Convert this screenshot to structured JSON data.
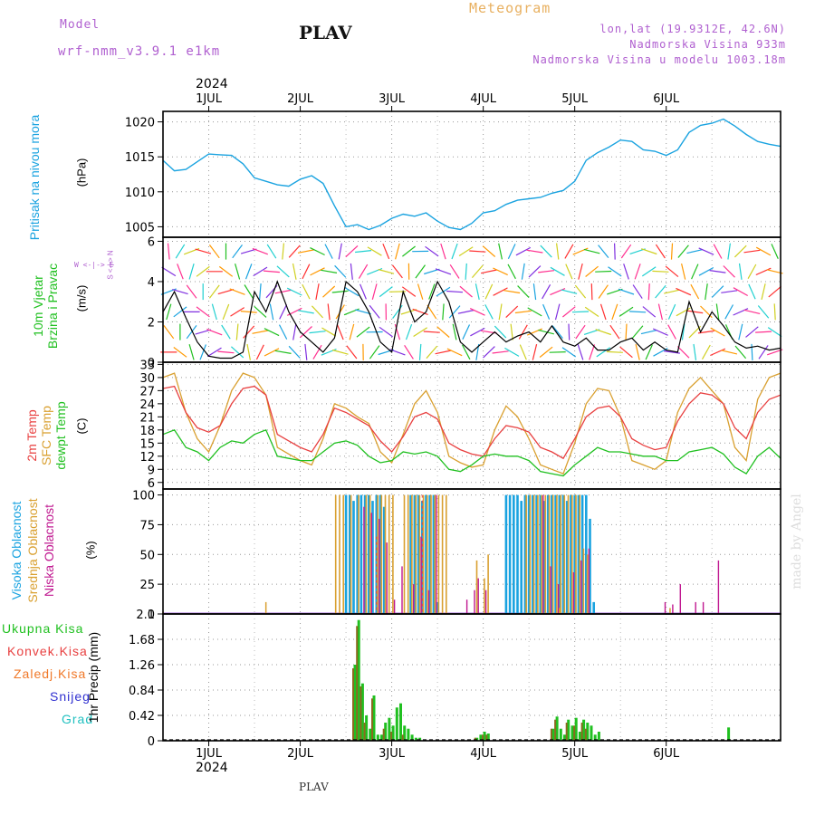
{
  "header": {
    "model_label": "Model",
    "model_name": "wrf-nmm_v3.9.1 e1km",
    "title": "PLAV",
    "meteogram_label": "Meteogram",
    "lonlat": "lon,lat (19.9312E, 42.6N)",
    "elevation": "Nadmorska Visina 933m",
    "model_elevation": "Nadmorska Visina u modelu 1003.18m",
    "footer_station": "PLAV",
    "watermark": "made by Angel",
    "year_top": "2024",
    "year_bottom": "2024"
  },
  "colors": {
    "pressure": "#1aa3e0",
    "temp2m": "#e84040",
    "sfc": "#d9a030",
    "dewpt": "#20c020",
    "high": "#1aa3e0",
    "mid": "#d9a030",
    "low": "#c01890",
    "total": "#20c020",
    "conv": "#e84040",
    "frozen": "#f07828",
    "snow": "#3030d0",
    "hail": "#20c0c0",
    "header_purple": "#b060d0",
    "header_orange": "#e8b060"
  },
  "day_labels": [
    "1JUL",
    "2JUL",
    "3JUL",
    "4JUL",
    "5JUL",
    "6JUL"
  ],
  "panels": {
    "pressure": {
      "label_name": "Pritisak na nivou mora",
      "unit": "(hPa)",
      "ticks": [
        "1005",
        "1010",
        "1015",
        "1020"
      ]
    },
    "wind": {
      "label_line1": "10m Vjetar",
      "label_line2": "Brzina i Pravac",
      "unit": "(m/s)",
      "compass": "W <-|-> E",
      "compass_v": "S <-|-> N",
      "ticks": [
        "0",
        "2",
        "4",
        "6"
      ]
    },
    "temp": {
      "label_2m": "2m Temp",
      "label_sfc": "SFC Temp",
      "label_dew": "dewpt Temp",
      "unit": "(C)",
      "ticks": [
        "6",
        "9",
        "12",
        "15",
        "18",
        "21",
        "24",
        "27",
        "30",
        "33"
      ]
    },
    "cloud": {
      "label_high": "Visoka Oblacnost",
      "label_mid": "Srednja Oblacnost",
      "label_low": "Niska Oblacnost",
      "unit": "(%)",
      "ticks": [
        "0",
        "25",
        "50",
        "75",
        "100"
      ]
    },
    "precip": {
      "label_total": "Ukupna Kisa",
      "label_conv": "Konvek.Kisa",
      "label_frozen": "Zaledj.Kisa",
      "label_snow": "Snijeg",
      "label_hail": "Grad",
      "unit": "1hr Precip (mm)",
      "ticks": [
        "0",
        "0.42",
        "0.84",
        "1.26",
        "1.68",
        "2.1"
      ]
    }
  },
  "chart_data": [
    {
      "type": "line",
      "name": "pressure",
      "x_unit": "hours from 2024-06-30 12Z",
      "x": [
        0,
        3,
        6,
        9,
        12,
        15,
        18,
        21,
        24,
        27,
        30,
        33,
        36,
        39,
        42,
        45,
        48,
        51,
        54,
        57,
        60,
        63,
        66,
        69,
        72,
        75,
        78,
        81,
        84,
        87,
        90,
        93,
        96,
        99,
        102,
        105,
        108,
        111,
        114,
        117,
        120,
        123,
        126,
        129,
        132,
        135,
        138,
        141,
        144,
        147,
        150,
        153,
        156,
        159,
        162
      ],
      "values": [
        1014.5,
        1013.0,
        1013.2,
        1014.3,
        1015.4,
        1015.3,
        1015.2,
        1014.0,
        1012.0,
        1011.5,
        1011.0,
        1010.8,
        1011.8,
        1012.3,
        1011.2,
        1008.0,
        1005.0,
        1005.3,
        1004.6,
        1005.2,
        1006.2,
        1006.8,
        1006.5,
        1007.0,
        1005.8,
        1004.9,
        1004.6,
        1005.5,
        1007.0,
        1007.3,
        1008.2,
        1008.8,
        1009.0,
        1009.2,
        1009.8,
        1010.2,
        1011.5,
        1014.5,
        1015.6,
        1016.4,
        1017.4,
        1017.2,
        1016.0,
        1015.8,
        1015.2,
        1016.0,
        1018.5,
        1019.5,
        1019.8,
        1020.4,
        1019.4,
        1018.2,
        1017.2,
        1016.8,
        1016.5
      ],
      "ylim": [
        1003.5,
        1021.5
      ]
    },
    {
      "type": "line",
      "name": "wind_speed",
      "x_unit": "hours from 2024-06-30 12Z",
      "x": [
        0,
        3,
        6,
        9,
        12,
        15,
        18,
        21,
        24,
        27,
        30,
        33,
        36,
        39,
        42,
        45,
        48,
        51,
        54,
        57,
        60,
        63,
        66,
        69,
        72,
        75,
        78,
        81,
        84,
        87,
        90,
        93,
        96,
        99,
        102,
        105,
        108,
        111,
        114,
        117,
        120,
        123,
        126,
        129,
        132,
        135,
        138,
        141,
        144,
        147,
        150,
        153,
        156,
        159,
        162
      ],
      "values": [
        2.5,
        3.5,
        2.2,
        1.0,
        0.3,
        0.2,
        0.2,
        0.5,
        3.5,
        2.5,
        4.0,
        2.5,
        1.5,
        1.0,
        0.5,
        1.2,
        4.0,
        3.5,
        2.5,
        1.0,
        0.5,
        3.5,
        2.0,
        2.5,
        4.0,
        3.0,
        1.0,
        0.5,
        1.0,
        1.5,
        1.0,
        1.3,
        1.5,
        1.0,
        1.8,
        1.0,
        0.8,
        1.2,
        0.6,
        0.6,
        1.0,
        1.2,
        0.6,
        1.0,
        0.6,
        0.5,
        3.0,
        1.5,
        2.5,
        1.8,
        1.0,
        0.7,
        0.8,
        0.6,
        0.7
      ],
      "ylim": [
        0,
        6.2
      ]
    },
    {
      "type": "line",
      "name": "temp_2m",
      "x_unit": "hours from 2024-06-30 12Z",
      "x": [
        0,
        3,
        6,
        9,
        12,
        15,
        18,
        21,
        24,
        27,
        30,
        33,
        36,
        39,
        42,
        45,
        48,
        51,
        54,
        57,
        60,
        63,
        66,
        69,
        72,
        75,
        78,
        81,
        84,
        87,
        90,
        93,
        96,
        99,
        102,
        105,
        108,
        111,
        114,
        117,
        120,
        123,
        126,
        129,
        132,
        135,
        138,
        141,
        144,
        147,
        150,
        153,
        156,
        159,
        162
      ],
      "values": [
        27.5,
        28.0,
        22.0,
        18.5,
        17.5,
        19.0,
        24.0,
        27.5,
        28.0,
        26.0,
        17.0,
        15.5,
        14.0,
        13.0,
        17.0,
        23.0,
        22.0,
        20.5,
        19.0,
        15.5,
        13.0,
        16.5,
        21.0,
        22.0,
        20.5,
        15.0,
        13.5,
        12.5,
        12.0,
        16.0,
        19.0,
        18.5,
        17.5,
        14.0,
        13.0,
        11.5,
        16.0,
        21.0,
        23.0,
        23.5,
        21.0,
        16.0,
        14.5,
        13.5,
        14.0,
        20.0,
        24.0,
        26.5,
        26.0,
        24.0,
        18.5,
        16.0,
        22.0,
        25.0,
        26.0
      ],
      "ylim": [
        4.5,
        33.5
      ]
    },
    {
      "type": "line",
      "name": "sfc_temp",
      "x_unit": "hours from 2024-06-30 12Z",
      "x": [
        0,
        3,
        6,
        9,
        12,
        15,
        18,
        21,
        24,
        27,
        30,
        33,
        36,
        39,
        42,
        45,
        48,
        51,
        54,
        57,
        60,
        63,
        66,
        69,
        72,
        75,
        78,
        81,
        84,
        87,
        90,
        93,
        96,
        99,
        102,
        105,
        108,
        111,
        114,
        117,
        120,
        123,
        126,
        129,
        132,
        135,
        138,
        141,
        144,
        147,
        150,
        153,
        156,
        159,
        162
      ],
      "values": [
        30.0,
        31.0,
        22.0,
        16.0,
        13.0,
        19.0,
        27.0,
        31.0,
        30.0,
        26.0,
        14.0,
        12.5,
        11.0,
        10.0,
        16.0,
        24.0,
        23.0,
        21.0,
        19.5,
        13.0,
        10.5,
        17.0,
        24.0,
        27.0,
        22.0,
        12.0,
        10.5,
        9.5,
        10.0,
        18.0,
        23.5,
        21.0,
        16.0,
        10.0,
        9.0,
        8.0,
        15.0,
        24.0,
        27.5,
        27.0,
        21.0,
        11.0,
        10.0,
        9.0,
        11.0,
        22.0,
        27.5,
        30.0,
        27.0,
        24.0,
        14.0,
        11.0,
        25.0,
        30.0,
        31.0
      ],
      "ylim": [
        4.5,
        33.5
      ]
    },
    {
      "type": "line",
      "name": "dewpt_temp",
      "x_unit": "hours from 2024-06-30 12Z",
      "x": [
        0,
        3,
        6,
        9,
        12,
        15,
        18,
        21,
        24,
        27,
        30,
        33,
        36,
        39,
        42,
        45,
        48,
        51,
        54,
        57,
        60,
        63,
        66,
        69,
        72,
        75,
        78,
        81,
        84,
        87,
        90,
        93,
        96,
        99,
        102,
        105,
        108,
        111,
        114,
        117,
        120,
        123,
        126,
        129,
        132,
        135,
        138,
        141,
        144,
        147,
        150,
        153,
        156,
        159,
        162
      ],
      "values": [
        17.0,
        18.0,
        14.0,
        13.0,
        11.0,
        14.0,
        15.5,
        15.0,
        17.0,
        18.0,
        12.0,
        11.5,
        11.0,
        11.0,
        13.0,
        15.0,
        15.5,
        14.5,
        12.0,
        10.5,
        11.0,
        13.0,
        12.5,
        13.0,
        12.0,
        9.0,
        8.5,
        10.0,
        12.0,
        12.5,
        12.0,
        12.0,
        11.0,
        8.5,
        8.0,
        7.5,
        10.0,
        12.0,
        14.0,
        13.0,
        13.0,
        12.5,
        12.0,
        12.0,
        11.0,
        11.0,
        13.0,
        13.5,
        14.0,
        12.5,
        9.5,
        8.0,
        12.0,
        14.0,
        11.5
      ],
      "ylim": [
        4.5,
        33.5
      ]
    },
    {
      "type": "bar",
      "name": "cloud_cover_percent",
      "x_unit": "hours from 2024-06-30 12Z",
      "high_x": [
        48,
        49,
        50,
        51,
        52,
        53,
        54,
        55,
        56,
        57,
        58,
        65,
        66,
        67,
        68,
        69,
        70,
        71,
        72,
        90,
        91,
        92,
        93,
        94,
        95,
        96,
        97,
        98,
        99,
        100,
        101,
        102,
        103,
        104,
        105,
        106,
        107,
        108,
        109,
        110,
        111,
        112,
        113
      ],
      "high_values": [
        100,
        100,
        95,
        100,
        100,
        100,
        100,
        95,
        100,
        100,
        90,
        100,
        100,
        100,
        95,
        100,
        100,
        100,
        10,
        100,
        100,
        100,
        100,
        95,
        100,
        100,
        100,
        100,
        100,
        95,
        100,
        100,
        100,
        100,
        100,
        95,
        100,
        100,
        100,
        100,
        100,
        80,
        10
      ],
      "mid_x": [
        45,
        46,
        47,
        49,
        51,
        53,
        54,
        56,
        57,
        58,
        59,
        60,
        63,
        64,
        65,
        66,
        67,
        68,
        69,
        70,
        71,
        72,
        73,
        74,
        82,
        84,
        85,
        95,
        96,
        97,
        98,
        99,
        100,
        101,
        102,
        103,
        104,
        105,
        106,
        107,
        108,
        109,
        110,
        111
      ],
      "mid_values": [
        100,
        100,
        100,
        100,
        100,
        100,
        100,
        100,
        100,
        100,
        100,
        100,
        100,
        100,
        100,
        100,
        100,
        100,
        100,
        100,
        100,
        100,
        100,
        100,
        45,
        30,
        50,
        100,
        100,
        100,
        100,
        100,
        100,
        100,
        100,
        100,
        100,
        100,
        100,
        100,
        100,
        100,
        55,
        50
      ],
      "low_x": [
        53,
        55,
        57,
        59,
        61,
        63,
        66,
        68,
        70,
        72,
        80,
        82,
        83,
        85,
        100,
        102,
        104,
        108,
        110,
        112,
        132,
        134,
        136,
        140,
        142,
        146
      ],
      "low_values": [
        90,
        85,
        80,
        60,
        12,
        40,
        25,
        65,
        20,
        100,
        12,
        20,
        30,
        20,
        100,
        40,
        25,
        35,
        45,
        55,
        10,
        8,
        25,
        10,
        10,
        45
      ],
      "low_dashed_x": [
        56,
        68
      ],
      "low_dashed_values": [
        65,
        100
      ],
      "small_values_x": [
        0,
        27,
        104,
        133
      ],
      "small_values": [
        2,
        10,
        5,
        5
      ],
      "ylim": [
        0,
        105
      ]
    },
    {
      "type": "bar",
      "name": "precip_1hr_mm",
      "x_unit": "hours from 2024-06-30 12Z",
      "total_x": [
        50,
        51,
        52,
        53,
        54,
        55,
        56,
        57,
        58,
        59,
        60,
        61,
        62,
        63,
        64,
        65,
        66,
        67,
        82,
        83,
        84,
        85,
        102,
        103,
        104,
        105,
        106,
        107,
        108,
        109,
        110,
        111,
        112,
        113,
        114,
        148
      ],
      "total": [
        1.26,
        2.0,
        0.95,
        0.42,
        0.2,
        0.75,
        0.1,
        0.1,
        0.3,
        0.38,
        0.25,
        0.55,
        0.62,
        0.25,
        0.2,
        0.1,
        0.05,
        0.05,
        0.05,
        0.1,
        0.15,
        0.12,
        0.2,
        0.4,
        0.2,
        0.1,
        0.35,
        0.25,
        0.38,
        0.15,
        0.35,
        0.3,
        0.25,
        0.1,
        0.15,
        0.22
      ],
      "conv_x": [
        50,
        51,
        52,
        53,
        55,
        58,
        60,
        63,
        82,
        84,
        85,
        102,
        103,
        106,
        108,
        110,
        111
      ],
      "conv": [
        1.2,
        1.9,
        0.9,
        0.3,
        0.7,
        0.2,
        0.15,
        0.1,
        0.05,
        0.1,
        0.1,
        0.2,
        0.35,
        0.3,
        0.25,
        0.3,
        0.2
      ],
      "ylim": [
        0,
        2.1
      ]
    }
  ]
}
